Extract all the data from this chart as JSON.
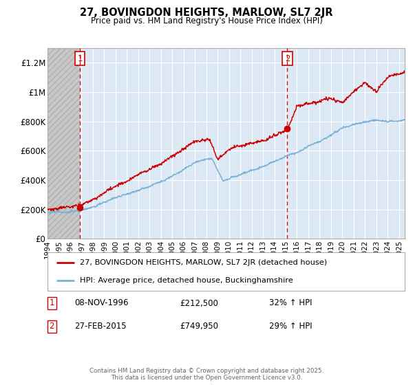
{
  "title": "27, BOVINGDON HEIGHTS, MARLOW, SL7 2JR",
  "subtitle": "Price paid vs. HM Land Registry's House Price Index (HPI)",
  "red_label": "27, BOVINGDON HEIGHTS, MARLOW, SL7 2JR (detached house)",
  "blue_label": "HPI: Average price, detached house, Buckinghamshire",
  "annotation1_date": "08-NOV-1996",
  "annotation1_price": "£212,500",
  "annotation1_hpi": "32% ↑ HPI",
  "annotation2_date": "27-FEB-2015",
  "annotation2_price": "£749,950",
  "annotation2_hpi": "29% ↑ HPI",
  "footer": "Contains HM Land Registry data © Crown copyright and database right 2025.\nThis data is licensed under the Open Government Licence v3.0.",
  "ylim": [
    0,
    1300000
  ],
  "yticks": [
    0,
    200000,
    400000,
    600000,
    800000,
    1000000,
    1200000
  ],
  "ytick_labels": [
    "£0",
    "£200K",
    "£400K",
    "£600K",
    "£800K",
    "£1M",
    "£1.2M"
  ],
  "plot_bg_color": "#dce9f5",
  "grid_color": "#ffffff",
  "red_color": "#cc0000",
  "blue_color": "#7ab0d4",
  "marker1_x": 1996.87,
  "marker1_y": 212500,
  "marker2_x": 2015.15,
  "marker2_y": 749950,
  "vline1_x": 1996.87,
  "vline2_x": 2015.15,
  "xmin": 1994.0,
  "xmax": 2025.5
}
